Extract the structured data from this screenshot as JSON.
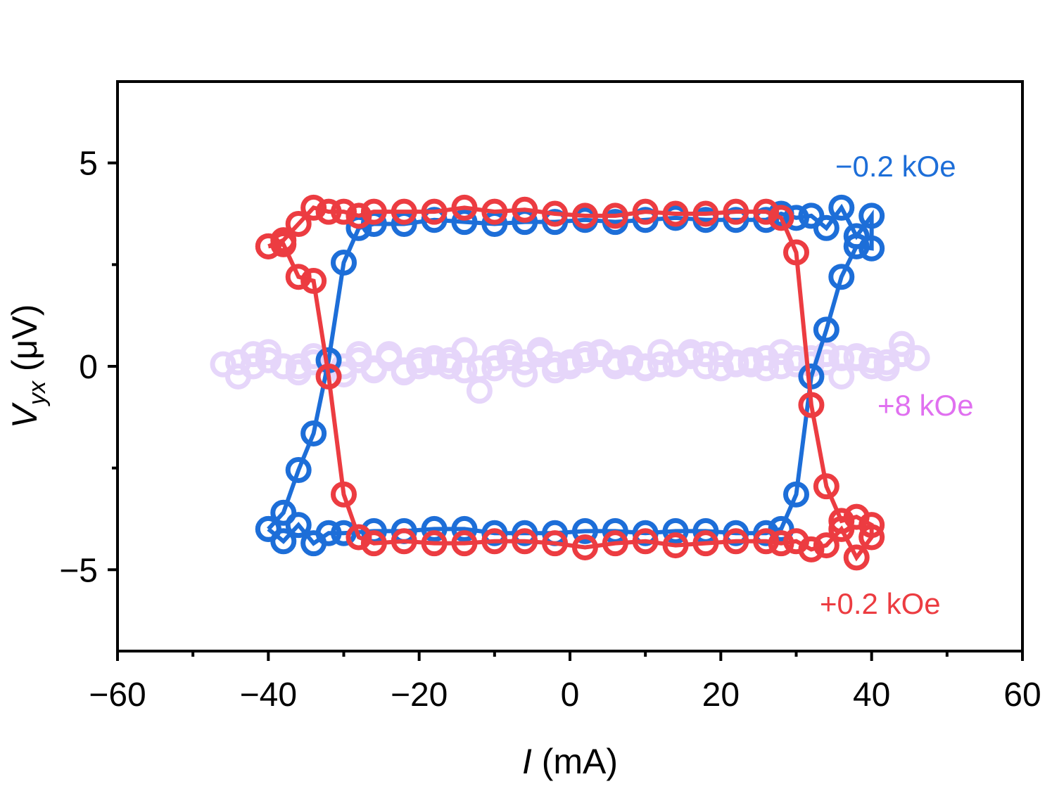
{
  "chart_data": {
    "type": "scatter",
    "xlabel": "I (mA)",
    "xlabel_italic": "I",
    "xlabel_unit": " (mA)",
    "ylabel_main": "V",
    "ylabel_sub": "yx",
    "ylabel_unit": " (μV)",
    "xlim": [
      -60,
      60
    ],
    "ylim": [
      -7,
      7
    ],
    "xticks": [
      -60,
      -40,
      -20,
      0,
      20,
      40,
      60
    ],
    "xtick_labels": [
      "−60",
      "−40",
      "−20",
      "0",
      "20",
      "40",
      "60"
    ],
    "yticks": [
      -5,
      0,
      5
    ],
    "ytick_labels": [
      "−5",
      "0",
      "5"
    ],
    "grid": false,
    "marker": "open-circle",
    "series": [
      {
        "name": "+8 kOe",
        "color": "#e6d6fa",
        "label_color": "#e070f0",
        "connected": false,
        "x": [
          -46,
          -44,
          -42,
          -40,
          -38,
          -36,
          -34,
          -32,
          -30,
          -28,
          -26,
          -24,
          -22,
          -20,
          -18,
          -16,
          -14,
          -12,
          -10,
          -8,
          -6,
          -4,
          -2,
          0,
          2,
          4,
          6,
          8,
          10,
          12,
          14,
          16,
          18,
          20,
          22,
          24,
          26,
          28,
          30,
          32,
          34,
          36,
          38,
          40,
          42,
          44,
          46,
          46,
          44,
          42,
          40,
          38,
          36,
          34,
          32,
          30,
          28,
          26,
          24,
          22,
          20,
          18,
          16,
          14,
          12,
          10,
          8,
          6,
          4,
          2,
          0,
          -2,
          -4,
          -6,
          -8,
          -10,
          -12,
          -14,
          -16,
          -18,
          -20,
          -22,
          -24,
          -26,
          -28,
          -30,
          -32,
          -34,
          -36,
          -38,
          -40,
          -42,
          -44
        ],
        "y": [
          0.05,
          -0.25,
          0.0,
          0.35,
          0.0,
          -0.15,
          0.25,
          0.15,
          0.0,
          0.3,
          -0.05,
          0.3,
          -0.15,
          0.15,
          0.2,
          0.0,
          0.4,
          -0.6,
          0.2,
          0.35,
          -0.2,
          0.4,
          0.05,
          0.1,
          0.3,
          0.35,
          0.1,
          0.1,
          0.0,
          0.35,
          0.1,
          0.35,
          0.3,
          -0.05,
          0.1,
          0.05,
          0.2,
          0.35,
          0.05,
          0.2,
          0.3,
          0.2,
          0.25,
          0.0,
          0.1,
          0.55,
          0.2,
          0.2,
          0.3,
          -0.05,
          0.15,
          0.2,
          -0.25,
          0.1,
          0.05,
          0.2,
          0.0,
          -0.05,
          0.15,
          0.05,
          0.3,
          0.0,
          0.25,
          0.05,
          0.05,
          -0.05,
          0.2,
          0.0,
          0.3,
          0.15,
          0.0,
          -0.1,
          0.3,
          0.1,
          0.2,
          -0.05,
          -0.05,
          -0.1,
          0.15,
          0.1,
          0.0,
          -0.1,
          0.2,
          -0.1,
          0.15,
          -0.2,
          0.1,
          0.1,
          0.0,
          0.0,
          0.15,
          0.3,
          0.1
        ]
      },
      {
        "name": "−0.2 kOe",
        "color": "#1d6ed8",
        "label_color": "#1d6ed8",
        "connected": true,
        "x": [
          -40,
          -38,
          -36,
          -34,
          -32,
          -30,
          -26,
          -22,
          -18,
          -14,
          -10,
          -6,
          -2,
          2,
          6,
          10,
          14,
          18,
          22,
          26,
          28,
          30,
          32,
          34,
          36,
          38,
          40,
          40,
          38,
          36,
          34,
          32,
          30,
          28,
          26,
          22,
          18,
          14,
          10,
          6,
          2,
          -2,
          -6,
          -10,
          -14,
          -18,
          -22,
          -26,
          -28,
          -30,
          -32,
          -34,
          -36,
          -38,
          -40
        ],
        "y": [
          -4.0,
          -4.3,
          -3.9,
          -4.35,
          -4.1,
          -4.1,
          -4.05,
          -4.05,
          -4.0,
          -4.0,
          -4.1,
          -4.1,
          -4.1,
          -4.05,
          -4.05,
          -4.1,
          -4.05,
          -4.05,
          -4.1,
          -4.1,
          -4.0,
          -3.15,
          -0.25,
          0.9,
          2.2,
          2.95,
          2.9,
          3.7,
          3.2,
          3.9,
          3.4,
          3.7,
          3.65,
          3.75,
          3.6,
          3.6,
          3.6,
          3.65,
          3.6,
          3.55,
          3.6,
          3.55,
          3.55,
          3.5,
          3.55,
          3.6,
          3.5,
          3.5,
          3.4,
          2.55,
          0.15,
          -1.65,
          -2.55,
          -3.6,
          -4.0
        ]
      },
      {
        "name": "+0.2 kOe",
        "color": "#ec3c41",
        "label_color": "#ec3c41",
        "connected": true,
        "x": [
          -40,
          -38,
          -36,
          -34,
          -32,
          -30,
          -28,
          -26,
          -22,
          -18,
          -14,
          -10,
          -6,
          -2,
          2,
          6,
          10,
          14,
          18,
          22,
          26,
          28,
          30,
          32,
          34,
          36,
          38,
          40,
          40,
          38,
          36,
          34,
          32,
          30,
          28,
          26,
          22,
          18,
          14,
          10,
          6,
          2,
          -2,
          -6,
          -10,
          -14,
          -18,
          -22,
          -26,
          -28,
          -30,
          -32,
          -34,
          -36,
          -38,
          -40
        ],
        "y": [
          2.95,
          3.1,
          3.5,
          3.9,
          3.8,
          3.8,
          3.7,
          3.8,
          3.8,
          3.8,
          3.9,
          3.8,
          3.85,
          3.75,
          3.7,
          3.7,
          3.8,
          3.75,
          3.75,
          3.8,
          3.8,
          3.65,
          2.8,
          -0.95,
          -2.95,
          -3.8,
          -3.7,
          -3.9,
          -4.2,
          -4.7,
          -4.0,
          -4.4,
          -4.5,
          -4.3,
          -4.35,
          -4.3,
          -4.3,
          -4.35,
          -4.4,
          -4.3,
          -4.35,
          -4.45,
          -4.35,
          -4.3,
          -4.3,
          -4.35,
          -4.35,
          -4.3,
          -4.35,
          -4.2,
          -3.15,
          -0.25,
          2.1,
          2.2,
          3.0,
          2.95
        ]
      }
    ],
    "annotations": [
      "−0.2 kOe",
      "+8 kOe",
      "+0.2 kOe"
    ]
  }
}
